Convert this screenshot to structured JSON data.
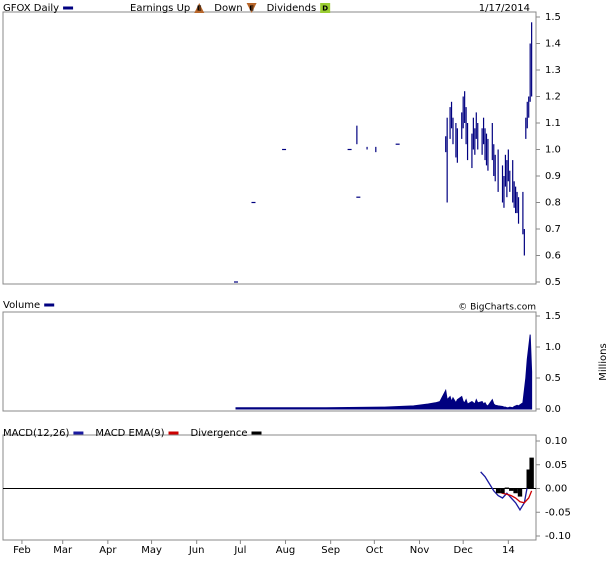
{
  "chart_data": [
    {
      "type": "stock",
      "title": "GFOX Daily",
      "date": "1/17/2014",
      "markers": [
        {
          "label": "Earnings Up",
          "icon": "E"
        },
        {
          "label": "Down",
          "icon": "E"
        },
        {
          "label": "Dividends",
          "icon": "D"
        }
      ],
      "xlim": [
        18,
        384
      ],
      "ylim": [
        0.5,
        1.5
      ],
      "yticks": [
        {
          "value": 1.5,
          "label": "1.5"
        },
        1.4,
        1.3,
        1.2,
        1.1,
        {
          "value": 1,
          "label": "1.0"
        },
        0.9,
        0.8,
        0.7,
        0.6,
        0.5
      ],
      "x": [
        178,
        190,
        211,
        256,
        261,
        262,
        268,
        274,
        289,
        322,
        323,
        325,
        326,
        327,
        329,
        330,
        333,
        334,
        335,
        336,
        337,
        340,
        341,
        342,
        343,
        344,
        347,
        348,
        349,
        350,
        351,
        354,
        355,
        356,
        358,
        361,
        362,
        363,
        364,
        365,
        366,
        368,
        369,
        370,
        371,
        372,
        375,
        376,
        377,
        378,
        379,
        380,
        381
      ],
      "series": [
        {
          "name": "GFOX Daily",
          "color": "#000080",
          "high": [
            0.5,
            0.8,
            1.0,
            1.0,
            1.09,
            0.82,
            1.01,
            1.01,
            1.02,
            1.05,
            1.12,
            1.16,
            1.18,
            1.12,
            1.1,
            1.08,
            1.14,
            1.2,
            1.22,
            1.16,
            1.1,
            1.06,
            1.12,
            1.08,
            1.14,
            1.1,
            1.08,
            1.12,
            1.08,
            1.06,
            1.04,
            1.1,
            1.02,
            0.98,
            1.0,
            0.94,
            0.9,
            0.98,
            0.96,
            1.0,
            0.92,
            0.96,
            0.88,
            0.86,
            0.84,
            0.82,
            0.84,
            0.7,
            1.12,
            1.18,
            1.2,
            1.4,
            1.48
          ],
          "low": [
            0.5,
            0.8,
            1.0,
            1.0,
            1.02,
            0.82,
            1.0,
            0.99,
            1.02,
            0.99,
            0.8,
            1.04,
            1.08,
            1.02,
            0.97,
            0.95,
            1.04,
            1.08,
            1.1,
            1.02,
            0.96,
            0.93,
            1.0,
            0.98,
            1.04,
            1.0,
            0.98,
            1.02,
            0.96,
            0.94,
            0.92,
            0.96,
            0.9,
            0.88,
            0.84,
            0.8,
            0.78,
            0.86,
            0.82,
            0.88,
            0.84,
            0.8,
            0.78,
            0.76,
            0.76,
            0.72,
            0.68,
            0.6,
            1.04,
            1.08,
            1.12,
            1.18,
            1.2
          ]
        }
      ]
    },
    {
      "type": "area",
      "y_label": "Millions",
      "credit": "© BigCharts.com",
      "xlim": [
        18,
        384
      ],
      "ylim": [
        0,
        1.5
      ],
      "yticks": [
        1.5,
        {
          "value": 1,
          "label": "1.0"
        },
        0.5,
        {
          "value": 0,
          "label": "0.0"
        }
      ],
      "x": [
        178,
        240,
        280,
        300,
        310,
        315,
        318,
        322,
        323,
        325,
        326,
        327,
        329,
        330,
        333,
        334,
        335,
        336,
        337,
        340,
        341,
        342,
        343,
        344,
        347,
        348,
        349,
        350,
        351,
        354,
        355,
        356,
        358,
        361,
        362,
        363,
        364,
        365,
        366,
        368,
        369,
        370,
        371,
        372,
        375,
        376,
        377,
        378,
        379,
        380,
        381
      ],
      "series": [
        {
          "name": "Volume",
          "color": "#000080",
          "values": [
            0.02,
            0.02,
            0.03,
            0.05,
            0.08,
            0.1,
            0.12,
            0.3,
            0.15,
            0.2,
            0.12,
            0.18,
            0.1,
            0.15,
            0.2,
            0.12,
            0.1,
            0.15,
            0.08,
            0.12,
            0.1,
            0.08,
            0.15,
            0.1,
            0.12,
            0.08,
            0.1,
            0.06,
            0.05,
            0.15,
            0.08,
            0.06,
            0.05,
            0.04,
            0.03,
            0.03,
            0.02,
            0.02,
            0.03,
            0.02,
            0.04,
            0.05,
            0.06,
            0.05,
            0.1,
            0.3,
            0.5,
            0.8,
            1.0,
            1.2,
            0.6
          ]
        }
      ]
    },
    {
      "type": "line",
      "xlim": [
        18,
        384
      ],
      "xticks": [
        {
          "value": 31,
          "label": "Feb"
        },
        {
          "value": 59,
          "label": "Mar"
        },
        {
          "value": 90,
          "label": "Apr"
        },
        {
          "value": 120,
          "label": "May"
        },
        {
          "value": 151,
          "label": "Jun"
        },
        {
          "value": 181,
          "label": "Jul"
        },
        {
          "value": 212,
          "label": "Aug"
        },
        {
          "value": 243,
          "label": "Sep"
        },
        {
          "value": 273,
          "label": "Oct"
        },
        {
          "value": 304,
          "label": "Nov"
        },
        {
          "value": 334,
          "label": "Dec"
        },
        {
          "value": 365,
          "label": "14"
        }
      ],
      "ylim": [
        -0.1,
        0.1
      ],
      "yticks": [
        {
          "value": 0.1,
          "label": "0.10"
        },
        0.05,
        {
          "value": 0,
          "label": "0.00"
        },
        -0.05,
        {
          "value": -0.1,
          "label": "-0.10"
        }
      ],
      "zero_line": true,
      "x": [
        346,
        349,
        352,
        355,
        358,
        361,
        364,
        367,
        370,
        373,
        376,
        379,
        381
      ],
      "series": [
        {
          "name": "MACD(12,26)",
          "color": "#1a1aa0",
          "style": "line",
          "values": [
            0.035,
            0.025,
            0.01,
            -0.005,
            -0.015,
            -0.02,
            -0.01,
            -0.02,
            -0.03,
            -0.045,
            -0.03,
            0.02,
            0.06
          ]
        },
        {
          "name": "MACD EMA(9)",
          "color": "#cc0000",
          "style": "line",
          "values": [
            null,
            null,
            null,
            null,
            -0.005,
            -0.01,
            -0.012,
            -0.015,
            -0.02,
            -0.028,
            -0.03,
            -0.02,
            -0.005
          ]
        },
        {
          "name": "Divergence",
          "color": "#000000",
          "style": "bar",
          "values": [
            null,
            null,
            null,
            null,
            -0.01,
            -0.01,
            0.002,
            -0.005,
            -0.01,
            -0.017,
            0,
            0.04,
            0.065
          ]
        }
      ]
    }
  ]
}
